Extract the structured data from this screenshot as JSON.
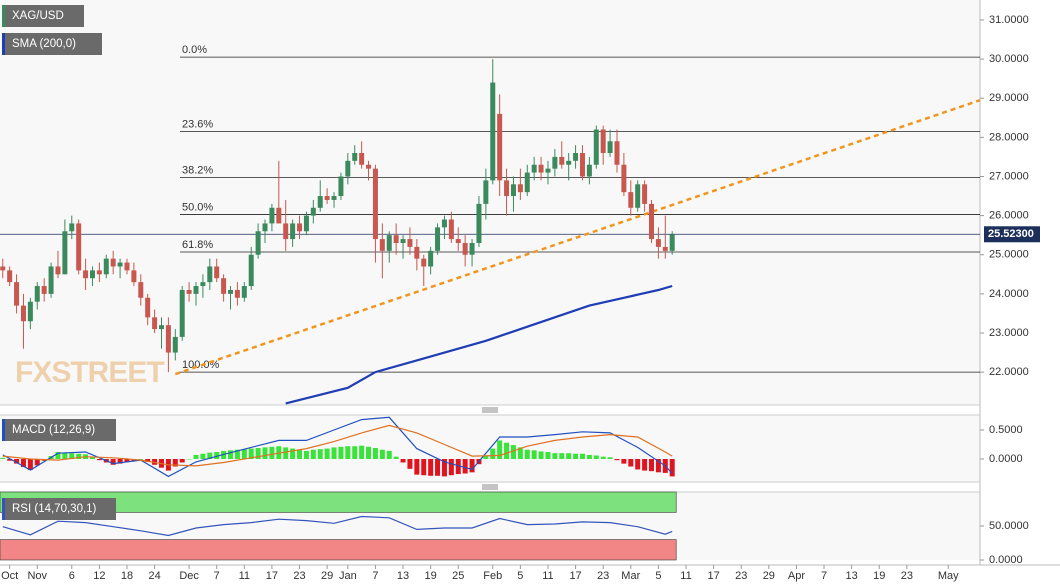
{
  "chart_data": [
    {
      "type": "candlestick",
      "name": "XAG/USD",
      "colors": {
        "up": "#3b8a5e",
        "down": "#c7574f"
      },
      "xlim": [
        -0.4,
        141.6
      ],
      "xticks": [
        {
          "value": 1,
          "label": "Oct"
        },
        {
          "value": 5,
          "label": "Nov"
        },
        {
          "value": 10,
          "label": "6"
        },
        {
          "value": 14,
          "label": "12"
        },
        {
          "value": 18,
          "label": "18"
        },
        {
          "value": 22,
          "label": "24"
        },
        {
          "value": 27,
          "label": "Dec"
        },
        {
          "value": 31,
          "label": "7"
        },
        {
          "value": 35,
          "label": "11"
        },
        {
          "value": 39,
          "label": "17"
        },
        {
          "value": 43,
          "label": "23"
        },
        {
          "value": 47,
          "label": "29"
        },
        {
          "value": 50,
          "label": "Jan"
        },
        {
          "value": 54,
          "label": "7"
        },
        {
          "value": 58,
          "label": "13"
        },
        {
          "value": 62,
          "label": "19"
        },
        {
          "value": 66,
          "label": "25"
        },
        {
          "value": 71,
          "label": "Feb"
        },
        {
          "value": 75,
          "label": "5"
        },
        {
          "value": 79,
          "label": "11"
        },
        {
          "value": 83,
          "label": "17"
        },
        {
          "value": 87,
          "label": "23"
        },
        {
          "value": 91,
          "label": "Mar"
        },
        {
          "value": 95,
          "label": "5"
        },
        {
          "value": 99,
          "label": "11"
        },
        {
          "value": 103,
          "label": "17"
        },
        {
          "value": 107,
          "label": "23"
        },
        {
          "value": 111,
          "label": "29"
        },
        {
          "value": 115,
          "label": "Apr"
        },
        {
          "value": 119,
          "label": "7"
        },
        {
          "value": 123,
          "label": "13"
        },
        {
          "value": 127,
          "label": "19"
        },
        {
          "value": 131,
          "label": "23"
        },
        {
          "value": 137,
          "label": "May"
        }
      ],
      "ylim": [
        21.16,
        31.51
      ],
      "yticks": [
        {
          "value": 22,
          "label": "22.0000"
        },
        {
          "value": 23,
          "label": "23.0000"
        },
        {
          "value": 24,
          "label": "24.0000"
        },
        {
          "value": 25,
          "label": "25.0000"
        },
        {
          "value": 26,
          "label": "26.0000"
        },
        {
          "value": 27,
          "label": "27.0000"
        },
        {
          "value": 28,
          "label": "28.0000"
        },
        {
          "value": 29,
          "label": "29.0000"
        },
        {
          "value": 30,
          "label": "30.0000"
        },
        {
          "value": 31,
          "label": "31.0000"
        }
      ],
      "candles": [
        [
          24.7,
          24.9,
          24.4,
          24.6
        ],
        [
          24.6,
          24.7,
          24.2,
          24.3
        ],
        [
          24.3,
          24.5,
          23.5,
          23.7
        ],
        [
          23.7,
          24.0,
          22.6,
          23.3
        ],
        [
          23.3,
          23.9,
          23.1,
          23.8
        ],
        [
          23.8,
          24.3,
          23.6,
          24.2
        ],
        [
          24.2,
          24.4,
          23.8,
          24.0
        ],
        [
          24.0,
          24.8,
          23.9,
          24.7
        ],
        [
          24.7,
          25.1,
          24.4,
          24.5
        ],
        [
          24.5,
          25.9,
          24.5,
          25.6
        ],
        [
          25.6,
          26.0,
          25.4,
          25.8
        ],
        [
          25.8,
          25.9,
          24.5,
          24.6
        ],
        [
          24.6,
          24.9,
          24.1,
          24.4
        ],
        [
          24.4,
          24.7,
          24.2,
          24.6
        ],
        [
          24.6,
          24.8,
          24.3,
          24.5
        ],
        [
          24.5,
          25.0,
          24.4,
          24.9
        ],
        [
          24.9,
          25.1,
          24.5,
          24.7
        ],
        [
          24.7,
          24.9,
          24.4,
          24.8
        ],
        [
          24.8,
          24.9,
          24.5,
          24.6
        ],
        [
          24.6,
          24.8,
          24.2,
          24.3
        ],
        [
          24.3,
          24.5,
          23.7,
          23.9
        ],
        [
          23.9,
          24.0,
          23.2,
          23.4
        ],
        [
          23.4,
          23.6,
          23.0,
          23.1
        ],
        [
          23.1,
          23.4,
          22.6,
          23.2
        ],
        [
          23.2,
          23.4,
          22.0,
          22.5
        ],
        [
          22.5,
          23.1,
          22.3,
          22.9
        ],
        [
          22.9,
          24.2,
          22.8,
          24.1
        ],
        [
          24.1,
          24.3,
          23.8,
          24.0
        ],
        [
          24.0,
          24.3,
          23.7,
          24.2
        ],
        [
          24.2,
          24.5,
          23.9,
          24.3
        ],
        [
          24.3,
          24.9,
          24.1,
          24.7
        ],
        [
          24.7,
          24.9,
          24.3,
          24.4
        ],
        [
          24.4,
          24.5,
          23.8,
          24.0
        ],
        [
          24.0,
          24.2,
          23.6,
          24.1
        ],
        [
          24.1,
          24.3,
          23.7,
          23.9
        ],
        [
          23.9,
          24.3,
          23.8,
          24.2
        ],
        [
          24.2,
          25.2,
          24.1,
          25.0
        ],
        [
          25.0,
          25.8,
          24.9,
          25.6
        ],
        [
          25.6,
          25.9,
          25.3,
          25.8
        ],
        [
          25.8,
          26.3,
          25.6,
          26.2
        ],
        [
          26.2,
          27.4,
          25.9,
          25.8
        ],
        [
          25.8,
          26.4,
          25.1,
          25.4
        ],
        [
          25.4,
          25.9,
          25.2,
          25.8
        ],
        [
          25.8,
          26.0,
          25.4,
          25.6
        ],
        [
          25.6,
          26.1,
          25.5,
          26.0
        ],
        [
          26.0,
          26.4,
          25.8,
          26.2
        ],
        [
          26.2,
          26.9,
          26.1,
          26.5
        ],
        [
          26.5,
          26.7,
          26.3,
          26.4
        ],
        [
          26.4,
          26.6,
          26.2,
          26.5
        ],
        [
          26.5,
          27.1,
          26.4,
          27.0
        ],
        [
          27.0,
          27.6,
          26.8,
          27.4
        ],
        [
          27.4,
          27.8,
          27.3,
          27.6
        ],
        [
          27.6,
          27.9,
          27.2,
          27.3
        ],
        [
          27.3,
          27.4,
          26.9,
          27.2
        ],
        [
          27.2,
          27.3,
          24.8,
          25.4
        ],
        [
          25.4,
          25.8,
          24.4,
          25.1
        ],
        [
          25.1,
          25.6,
          24.8,
          25.5
        ],
        [
          25.5,
          25.8,
          25.0,
          25.3
        ],
        [
          25.3,
          25.5,
          24.9,
          25.4
        ],
        [
          25.4,
          25.7,
          25.0,
          25.2
        ],
        [
          25.2,
          25.4,
          24.6,
          24.9
        ],
        [
          24.9,
          25.0,
          24.2,
          24.7
        ],
        [
          24.7,
          25.2,
          24.5,
          25.1
        ],
        [
          25.1,
          25.8,
          25.0,
          25.7
        ],
        [
          25.7,
          26.0,
          25.4,
          25.9
        ],
        [
          25.9,
          26.1,
          25.3,
          25.4
        ],
        [
          25.4,
          25.7,
          25.1,
          25.3
        ],
        [
          25.3,
          25.5,
          24.7,
          25.0
        ],
        [
          25.0,
          25.4,
          24.7,
          25.3
        ],
        [
          25.3,
          26.5,
          25.2,
          26.3
        ],
        [
          26.3,
          27.2,
          25.9,
          26.9
        ],
        [
          26.9,
          30.0,
          26.8,
          29.4
        ],
        [
          28.6,
          29.1,
          26.5,
          26.9
        ],
        [
          26.9,
          27.2,
          26.0,
          26.5
        ],
        [
          26.5,
          27.0,
          26.1,
          26.8
        ],
        [
          26.8,
          27.2,
          26.4,
          26.6
        ],
        [
          26.6,
          27.3,
          26.5,
          27.1
        ],
        [
          27.1,
          27.5,
          26.9,
          27.3
        ],
        [
          27.3,
          27.5,
          26.9,
          27.1
        ],
        [
          27.1,
          27.4,
          26.8,
          27.2
        ],
        [
          27.2,
          27.7,
          27.0,
          27.5
        ],
        [
          27.5,
          27.9,
          27.2,
          27.3
        ],
        [
          27.3,
          27.6,
          26.9,
          27.4
        ],
        [
          27.4,
          27.8,
          27.2,
          27.6
        ],
        [
          27.6,
          27.8,
          26.9,
          27.0
        ],
        [
          27.0,
          27.5,
          26.8,
          27.3
        ],
        [
          27.3,
          28.3,
          27.2,
          28.2
        ],
        [
          28.2,
          28.3,
          27.3,
          27.6
        ],
        [
          27.6,
          28.2,
          27.5,
          27.9
        ],
        [
          27.9,
          28.2,
          27.1,
          27.3
        ],
        [
          27.3,
          27.6,
          26.5,
          26.6
        ],
        [
          26.6,
          26.9,
          26.0,
          26.2
        ],
        [
          26.2,
          26.9,
          26.1,
          26.8
        ],
        [
          26.8,
          26.9,
          26.1,
          26.3
        ],
        [
          26.3,
          26.4,
          25.3,
          25.4
        ],
        [
          25.4,
          25.7,
          24.9,
          25.2
        ],
        [
          25.2,
          26.0,
          24.9,
          25.1
        ],
        [
          25.1,
          25.6,
          25.0,
          25.523
        ]
      ],
      "sma": {
        "name": "SMA (200,0)",
        "color": "#1f3db5",
        "x": [
          41,
          50,
          54,
          60,
          70,
          75,
          80,
          85,
          90,
          95,
          97
        ],
        "values": [
          21.2,
          21.6,
          22.0,
          22.3,
          22.8,
          23.1,
          23.4,
          23.7,
          23.9,
          24.1,
          24.2
        ]
      },
      "trendline": {
        "color": "#f0961e",
        "x": [
          25,
          141.6
        ],
        "values": [
          21.95,
          28.95
        ]
      },
      "fib_levels": [
        {
          "label": "0.0%",
          "value": 30.05
        },
        {
          "label": "23.6%",
          "value": 28.15
        },
        {
          "label": "38.2%",
          "value": 26.97
        },
        {
          "label": "50.0%",
          "value": 26.03
        },
        {
          "label": "61.8%",
          "value": 25.07
        },
        {
          "label": "100.0%",
          "value": 22.0
        }
      ],
      "last_price": 25.523,
      "last_price_label": "25.52300",
      "watermark": "FXSTREET"
    },
    {
      "type": "macd",
      "name": "MACD (12,26,9)",
      "ylim": [
        -0.397,
        0.759
      ],
      "yticks": [
        {
          "value": 0.5,
          "label": "0.5000"
        },
        {
          "value": 0,
          "label": "0.0000"
        }
      ],
      "histogram": {
        "up": "#39e339",
        "down": "#e0141e",
        "values": [
          0.02,
          -0.03,
          -0.08,
          -0.14,
          -0.19,
          -0.11,
          -0.03,
          0.05,
          0.12,
          0.11,
          0.1,
          0.09,
          0.08,
          0.03,
          -0.02,
          -0.06,
          -0.1,
          -0.08,
          -0.05,
          -0.03,
          0.0,
          -0.05,
          -0.1,
          -0.15,
          -0.2,
          -0.13,
          -0.06,
          0.0,
          0.07,
          0.09,
          0.11,
          0.12,
          0.14,
          0.15,
          0.16,
          0.17,
          0.18,
          0.19,
          0.2,
          0.21,
          0.22,
          0.2,
          0.18,
          0.16,
          0.14,
          0.16,
          0.17,
          0.18,
          0.2,
          0.21,
          0.22,
          0.22,
          0.23,
          0.21,
          0.19,
          0.16,
          0.14,
          0.04,
          -0.06,
          -0.17,
          -0.27,
          -0.28,
          -0.29,
          -0.29,
          -0.3,
          -0.28,
          -0.26,
          -0.25,
          -0.23,
          -0.09,
          0.05,
          0.18,
          0.32,
          0.28,
          0.24,
          0.2,
          0.16,
          0.15,
          0.13,
          0.12,
          0.1,
          0.1,
          0.1,
          0.09,
          0.09,
          0.07,
          0.06,
          0.04,
          0.03,
          -0.02,
          -0.08,
          -0.13,
          -0.18,
          -0.2,
          -0.21,
          -0.23,
          -0.24,
          -0.3
        ]
      },
      "series": [
        {
          "color": "#2050c0",
          "x": [
            0,
            4,
            8,
            12,
            16,
            20,
            24,
            28,
            32,
            36,
            40,
            44,
            48,
            52,
            56,
            60,
            64,
            68,
            72,
            76,
            80,
            84,
            88,
            92,
            96,
            97
          ],
          "values": [
            0.07,
            -0.19,
            0.1,
            0.12,
            -0.08,
            -0.02,
            -0.3,
            -0.05,
            0.08,
            0.2,
            0.32,
            0.32,
            0.5,
            0.68,
            0.72,
            0.18,
            -0.05,
            -0.18,
            0.38,
            0.38,
            0.42,
            0.47,
            0.45,
            0.2,
            -0.12,
            -0.25
          ]
        },
        {
          "color": "#e07020",
          "x": [
            0,
            4,
            8,
            12,
            16,
            20,
            24,
            28,
            32,
            36,
            40,
            44,
            48,
            52,
            56,
            60,
            64,
            68,
            72,
            76,
            80,
            84,
            88,
            92,
            96,
            97
          ],
          "values": [
            0.05,
            0.0,
            -0.02,
            0.04,
            0.02,
            -0.02,
            -0.1,
            -0.12,
            -0.06,
            0.02,
            0.1,
            0.18,
            0.3,
            0.45,
            0.58,
            0.45,
            0.25,
            0.05,
            0.06,
            0.22,
            0.32,
            0.38,
            0.42,
            0.38,
            0.12,
            0.05
          ]
        }
      ]
    },
    {
      "type": "rsi",
      "name": "RSI (14,70,30,1)",
      "ylim": [
        0,
        100
      ],
      "yticks": [
        {
          "value": 50,
          "label": "50.0000"
        },
        {
          "value": 0,
          "label": "0.0000"
        }
      ],
      "overbought": 70,
      "oversold": 30,
      "zone_colors": {
        "overbought": "#7de27d",
        "oversold": "#f28585"
      },
      "series": [
        {
          "color": "#3355bb",
          "x": [
            0,
            4,
            8,
            12,
            16,
            20,
            24,
            28,
            32,
            36,
            40,
            44,
            48,
            52,
            56,
            60,
            64,
            68,
            72,
            76,
            80,
            84,
            88,
            92,
            96,
            97
          ],
          "values": [
            49,
            37,
            57,
            55,
            49,
            43,
            36,
            47,
            52,
            55,
            60,
            58,
            54,
            64,
            62,
            45,
            47,
            47,
            61,
            52,
            53,
            56,
            55,
            49,
            38,
            42
          ]
        }
      ]
    }
  ]
}
